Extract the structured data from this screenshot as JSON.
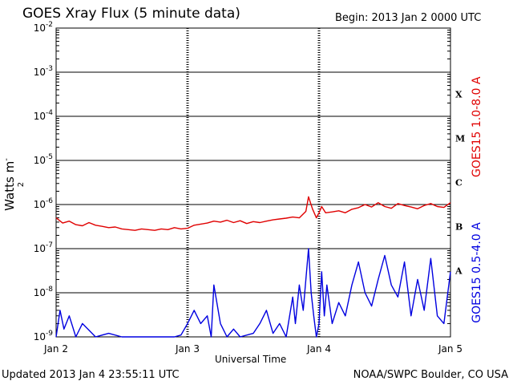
{
  "header": {
    "title": "GOES Xray Flux (5 minute data)",
    "begin": "Begin:  2013 Jan 2 0000 UTC"
  },
  "footer": {
    "updated": "Updated 2013 Jan  4 23:55:11 UTC",
    "credit": "NOAA/SWPC Boulder, CO USA"
  },
  "colors": {
    "long": "#e00000",
    "short": "#0000e0",
    "grid": "#000000"
  },
  "chart_data": {
    "type": "line",
    "xlabel": "Universal Time",
    "ylabel": "Watts m",
    "ylabel_sup": "-2",
    "yscale": "log",
    "ylim": [
      1e-09,
      0.01
    ],
    "xlim": [
      0,
      3
    ],
    "x_ticks": [
      {
        "value": 0,
        "label": "Jan 2"
      },
      {
        "value": 1,
        "label": "Jan 3"
      },
      {
        "value": 2,
        "label": "Jan 4"
      },
      {
        "value": 3,
        "label": "Jan 5"
      }
    ],
    "y_ticks": [
      {
        "value": 1e-09,
        "base": "10",
        "exp": "-9"
      },
      {
        "value": 1e-08,
        "base": "10",
        "exp": "-8"
      },
      {
        "value": 1e-07,
        "base": "10",
        "exp": "-7"
      },
      {
        "value": 1e-06,
        "base": "10",
        "exp": "-6"
      },
      {
        "value": 1e-05,
        "base": "10",
        "exp": "-5"
      },
      {
        "value": 0.0001,
        "base": "10",
        "exp": "-4"
      },
      {
        "value": 0.001,
        "base": "10",
        "exp": "-3"
      },
      {
        "value": 0.01,
        "base": "10",
        "exp": "-2"
      }
    ],
    "flare_classes": [
      {
        "label": "A",
        "value": 3.16e-08
      },
      {
        "label": "B",
        "value": 3.16e-07
      },
      {
        "label": "C",
        "value": 3.16e-06
      },
      {
        "label": "M",
        "value": 3.16e-05
      },
      {
        "label": "X",
        "value": 0.000316
      }
    ],
    "series": [
      {
        "name": "GOES15 1.0-8.0 A",
        "color": "#e00000",
        "x": [
          0,
          0.05,
          0.1,
          0.15,
          0.2,
          0.25,
          0.3,
          0.35,
          0.4,
          0.45,
          0.5,
          0.55,
          0.6,
          0.65,
          0.7,
          0.75,
          0.8,
          0.85,
          0.9,
          0.95,
          1.0,
          1.05,
          1.1,
          1.15,
          1.2,
          1.25,
          1.3,
          1.35,
          1.4,
          1.45,
          1.5,
          1.55,
          1.6,
          1.65,
          1.7,
          1.75,
          1.8,
          1.85,
          1.9,
          1.92,
          1.95,
          1.98,
          2.0,
          2.02,
          2.05,
          2.1,
          2.15,
          2.2,
          2.25,
          2.3,
          2.35,
          2.4,
          2.45,
          2.5,
          2.55,
          2.6,
          2.65,
          2.7,
          2.75,
          2.8,
          2.85,
          2.9,
          2.95,
          3.0
        ],
        "y": [
          5e-07,
          3.8e-07,
          4.2e-07,
          3.5e-07,
          3.3e-07,
          3.9e-07,
          3.4e-07,
          3.2e-07,
          3e-07,
          3.1e-07,
          2.8e-07,
          2.7e-07,
          2.6e-07,
          2.8e-07,
          2.7e-07,
          2.6e-07,
          2.8e-07,
          2.7e-07,
          3e-07,
          2.8e-07,
          2.9e-07,
          3.4e-07,
          3.6e-07,
          3.8e-07,
          4.2e-07,
          4e-07,
          4.4e-07,
          3.9e-07,
          4.3e-07,
          3.7e-07,
          4.1e-07,
          3.9e-07,
          4.2e-07,
          4.5e-07,
          4.7e-07,
          4.9e-07,
          5.2e-07,
          5e-07,
          7e-07,
          1.5e-06,
          8e-07,
          5e-07,
          6.5e-07,
          9e-07,
          6.5e-07,
          6.8e-07,
          7.2e-07,
          6.5e-07,
          7.8e-07,
          8.5e-07,
          1e-06,
          8.8e-07,
          1.1e-06,
          9e-07,
          8.2e-07,
          1.05e-06,
          9.5e-07,
          8.8e-07,
          8e-07,
          9.5e-07,
          1.05e-06,
          9e-07,
          8.6e-07,
          1.1e-06
        ]
      },
      {
        "name": "GOES15 0.5-4.0 A",
        "color": "#0000e0",
        "x": [
          0,
          0.03,
          0.06,
          0.1,
          0.15,
          0.2,
          0.3,
          0.4,
          0.5,
          0.6,
          0.7,
          0.8,
          0.85,
          0.9,
          0.95,
          1.0,
          1.05,
          1.1,
          1.15,
          1.18,
          1.2,
          1.25,
          1.3,
          1.35,
          1.4,
          1.5,
          1.55,
          1.6,
          1.65,
          1.7,
          1.75,
          1.8,
          1.82,
          1.85,
          1.88,
          1.9,
          1.92,
          1.94,
          1.96,
          1.98,
          2.0,
          2.02,
          2.04,
          2.06,
          2.1,
          2.15,
          2.2,
          2.25,
          2.3,
          2.35,
          2.4,
          2.45,
          2.5,
          2.55,
          2.6,
          2.65,
          2.7,
          2.75,
          2.8,
          2.85,
          2.9,
          2.95,
          3.0
        ],
        "y": [
          1e-09,
          4e-09,
          1.5e-09,
          3e-09,
          1e-09,
          2e-09,
          1e-09,
          1.2e-09,
          1e-09,
          1e-09,
          1e-09,
          1e-09,
          1e-09,
          1e-09,
          1.1e-09,
          2e-09,
          4e-09,
          2e-09,
          3e-09,
          1e-09,
          1.5e-08,
          2e-09,
          1e-09,
          1.5e-09,
          1e-09,
          1.2e-09,
          2e-09,
          4e-09,
          1.2e-09,
          2e-09,
          1e-09,
          8e-09,
          2e-09,
          1.5e-08,
          4e-09,
          2e-08,
          1e-07,
          1e-08,
          3e-09,
          1e-09,
          2e-09,
          3e-08,
          3e-09,
          1.5e-08,
          2e-09,
          6e-09,
          3e-09,
          1.5e-08,
          5e-08,
          1e-08,
          5e-09,
          2e-08,
          7e-08,
          1.5e-08,
          8e-09,
          5e-08,
          3e-09,
          2e-08,
          4e-09,
          6e-08,
          3e-09,
          2e-09,
          3e-08
        ]
      }
    ]
  }
}
